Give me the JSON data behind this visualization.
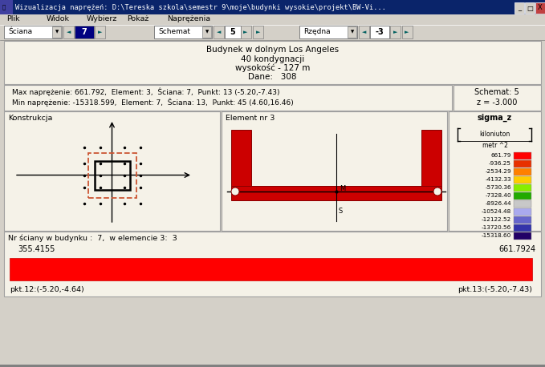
{
  "title_bar": "Wizualizacja naprężeń: D:\\Tereska szkola\\semestr 9\\moje\\budynki wysokie\\projekt\\BW-Vi...",
  "menu_items": [
    "Plik",
    "Widok",
    "Wybierz",
    "Pokaż",
    "Naprężenia"
  ],
  "toolbar_left": "Ściana",
  "toolbar_val": "7",
  "toolbar_mid": "Schemat",
  "toolbar_mid_val": "5",
  "toolbar_right": "Rzędna",
  "toolbar_right_val": "-3",
  "info_line1": "Budynek w dolnym Los Angeles",
  "info_line2": "40 kondygnacji",
  "info_line3": "wysokość - 127 m",
  "info_line4": "Dane:   308",
  "max_text": "Max naprężenie: 661.792,  Element: 3,  Ŝciana: 7,  Punkt: 13 (-5.20,-7.43)",
  "min_text": "Min naprężenie: -15318.599,  Element: 7,  Ŝciana: 13,  Punkt: 45 (4.60,16.46)",
  "schemat_text": "Schemat: 5",
  "z_text": "z = -3.000",
  "konstrukcja_label": "Konstrukcja",
  "element_label": "Element nr 3",
  "nr_sciany_text": "Nr ściany w budynku :  7,  w elemencie 3:  3",
  "bar_left_val": "355.4155",
  "bar_right_val": "661.7924",
  "bar_left_pt": "pkt.12:(-5.20,-4.64)",
  "bar_right_pt": "pkt.13:(-5.20,-7.43)",
  "sigma_z_label": "sigma_z",
  "colorbar_values": [
    "661.79",
    "-936.25",
    "-2534.29",
    "-4132.33",
    "-5730.36",
    "-7328.40",
    "-8926.44",
    "-10524.48",
    "-12122.52",
    "-13720.56",
    "-15318.60"
  ],
  "colorbar_colors": [
    "#ff0000",
    "#e83000",
    "#ff8000",
    "#ffcc00",
    "#88ee00",
    "#22aa00",
    "#c8c8c8",
    "#aaaaee",
    "#6666cc",
    "#3333aa",
    "#220066"
  ],
  "bg_color": "#d4d0c8",
  "panel_color": "#ece9d8",
  "inner_panel_color": "#f5f2e8",
  "bar_color": "#ff0000",
  "title_bar_color": "#0a246a",
  "title_text_color": "#ffffff",
  "toolbar_highlight": "#000080"
}
